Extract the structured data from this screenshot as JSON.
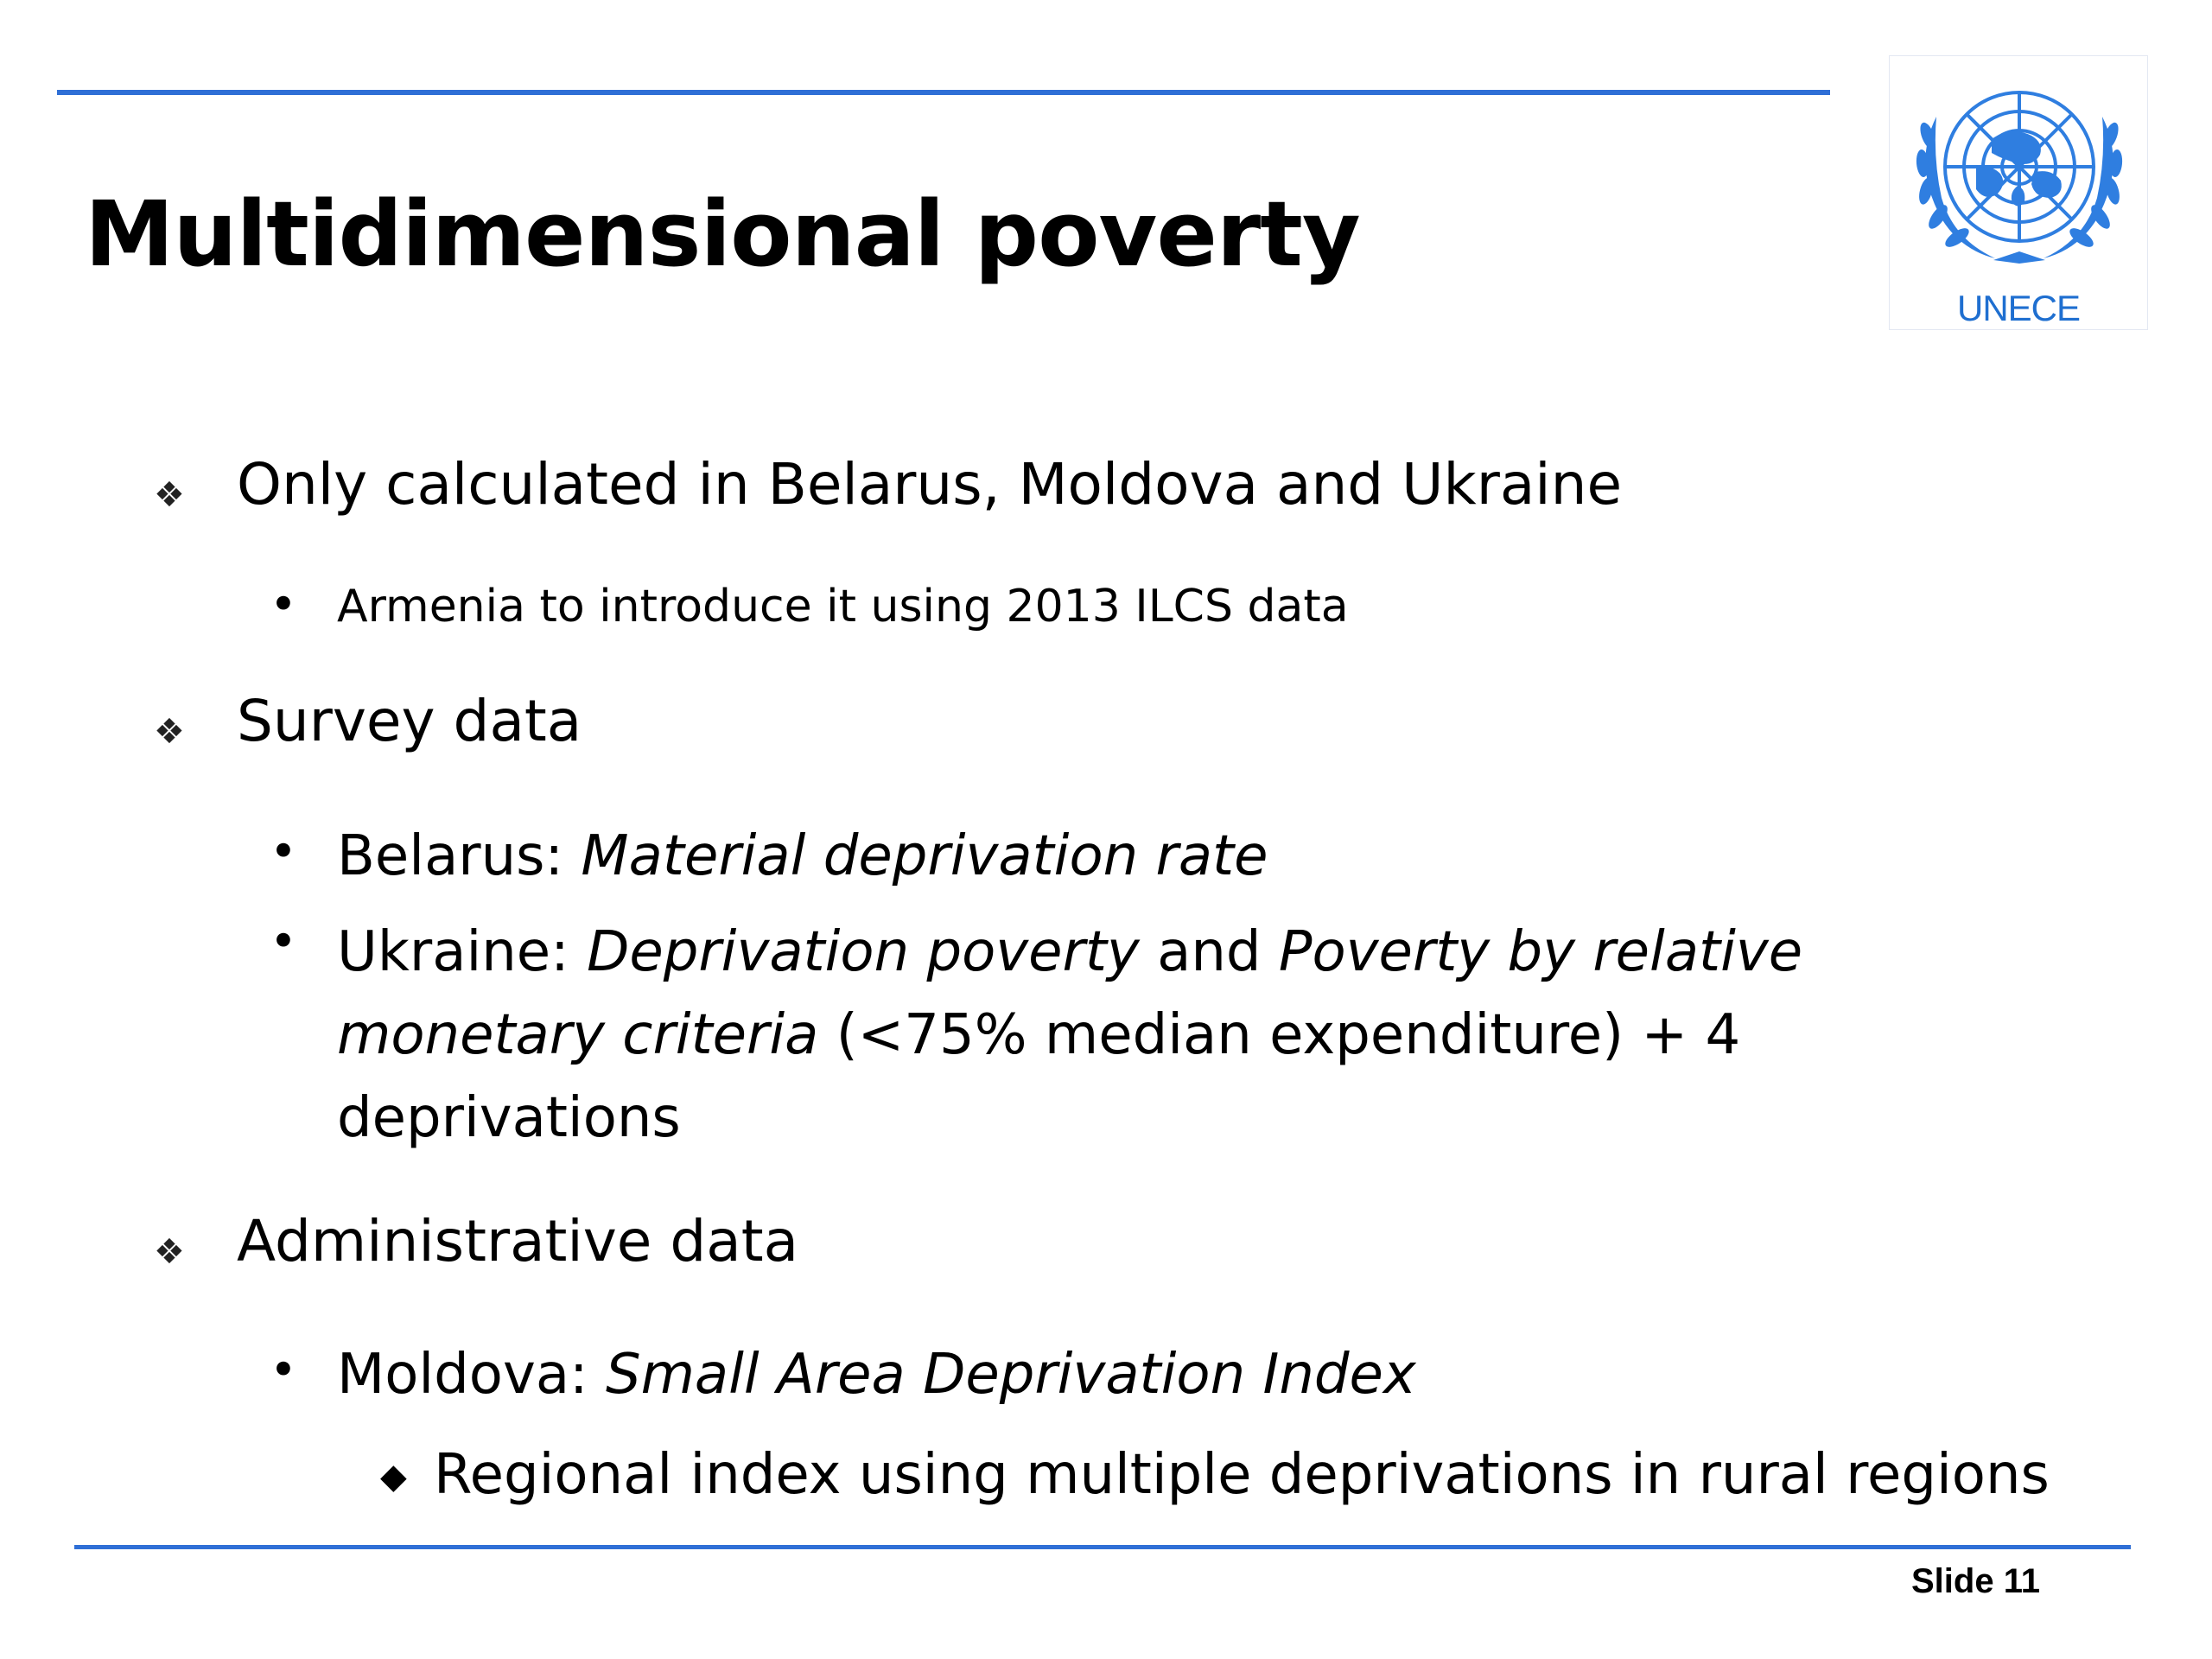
{
  "title": "Multidimensional poverty",
  "logo": {
    "text": "UNECE",
    "color": "#1f6fd0"
  },
  "accent_color": "#2f6fd6",
  "bullets": {
    "b1": "Only calculated in Belarus, Moldova and Ukraine",
    "b1_sub": "Armenia to introduce it using 2013 ILCS data",
    "b2": "Survey data",
    "b2_belarus_label": "Belarus: ",
    "b2_belarus_italic": "Material deprivation rate",
    "b2_ukraine_label": "Ukraine: ",
    "b2_ukraine_it1": "Deprivation poverty",
    "b2_ukraine_and": " and ",
    "b2_ukraine_it2": "Poverty by relative monetary criteria",
    "b2_ukraine_rest": " (<75%  median expenditure) + 4 deprivations",
    "b3": "Administrative data",
    "b3_moldova_label": "Moldova: ",
    "b3_moldova_italic": "Small Area Deprivation Index",
    "b3_moldova_sub": "Regional index using multiple deprivations in rural regions"
  },
  "markers": {
    "level1": "❖",
    "level2": "•",
    "level3": "◆"
  },
  "slide_number": "Slide 11"
}
